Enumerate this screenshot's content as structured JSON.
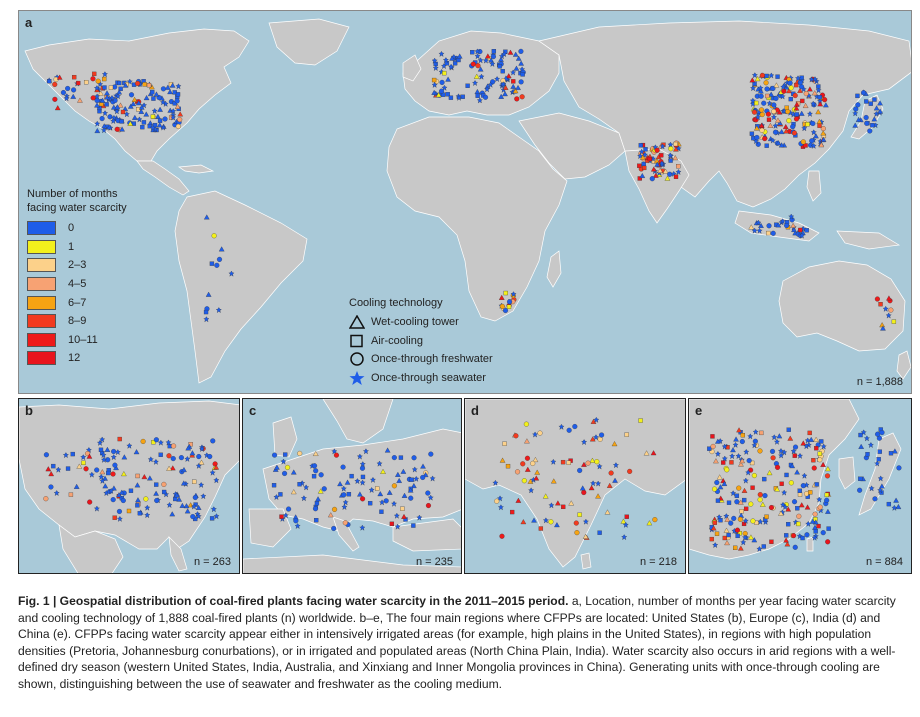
{
  "panels": {
    "a": {
      "letter": "a",
      "n_label": "n = 1,888"
    },
    "b": {
      "letter": "b",
      "n_label": "n = 263"
    },
    "c": {
      "letter": "c",
      "n_label": "n = 235"
    },
    "d": {
      "letter": "d",
      "n_label": "n = 218"
    },
    "e": {
      "letter": "e",
      "n_label": "n = 884"
    }
  },
  "legend_scarcity": {
    "title_line1": "Number of months",
    "title_line2": "facing water scarcity",
    "items": [
      {
        "label": "0",
        "color": "#1f5de8"
      },
      {
        "label": "1",
        "color": "#f3f01c"
      },
      {
        "label": "2–3",
        "color": "#fcd18a"
      },
      {
        "label": "4–5",
        "color": "#f7a273"
      },
      {
        "label": "6–7",
        "color": "#f6a313"
      },
      {
        "label": "8–9",
        "color": "#f23a1f"
      },
      {
        "label": "10–11",
        "color": "#ee1a1a"
      },
      {
        "label": "12",
        "color": "#e8141d"
      }
    ]
  },
  "legend_cooling": {
    "title": "Cooling technology",
    "items": [
      {
        "label": "Wet-cooling tower",
        "icon": "triangle-outline-icon"
      },
      {
        "label": "Air-cooling",
        "icon": "square-outline-icon"
      },
      {
        "label": "Once-through freshwater",
        "icon": "circle-outline-icon"
      },
      {
        "label": "Once-through seawater",
        "icon": "blue-star-icon"
      }
    ]
  },
  "caption": {
    "fig_label": "Fig. 1 | Geospatial distribution of coal-fired plants facing water scarcity in the 2011–2015 period.",
    "text": " a, Location, number of months per year facing water scarcity and cooling technology of 1,888 coal-fired plants (n) worldwide. b–e, The four main regions where CFPPs are located: United States (b), Europe (c), India (d) and China (e). CFPPs facing water scarcity appear either in intensively irrigated areas (for example, high plains in the United States), in regions with high population densities (Pretoria, Johannesburg conurbations), or in irrigated and populated areas (North China Plain, India). Water scarcity also occurs in arid regions with a well-defined dry season (western United States, India, Australia, and Xinxiang and Inner Mongolia provinces in China). Generating units with once-through cooling are shown, distinguishing between the use of seawater and freshwater as the cooling medium."
  },
  "colors": {
    "ocean": "#a9c9d8",
    "land": "#c8c8c8",
    "land_border": "#ffffff"
  }
}
